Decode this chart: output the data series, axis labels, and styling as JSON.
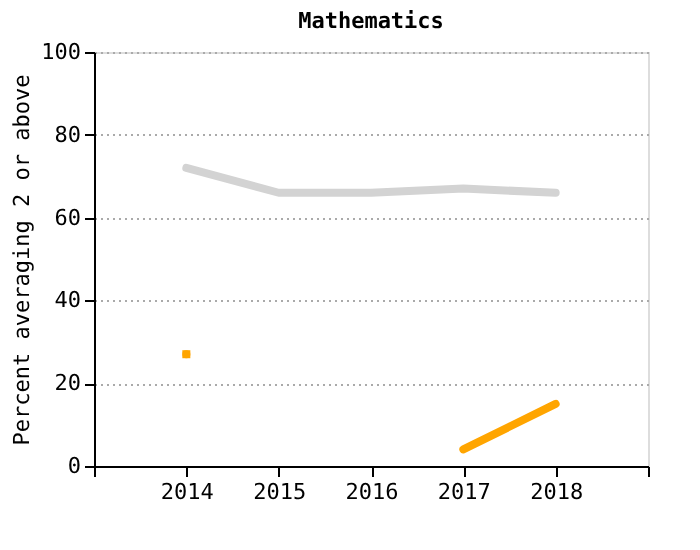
{
  "chart_data": {
    "type": "line",
    "title": "Mathematics",
    "ylabel": "Percent averaging 2 or above",
    "x": [
      2014,
      2015,
      2016,
      2017,
      2018
    ],
    "series": [
      {
        "color": "#d3d3d3",
        "values": [
          72,
          66,
          66,
          67,
          66
        ]
      },
      {
        "color": "#ffa500",
        "values": [
          27,
          null,
          null,
          4,
          15
        ]
      }
    ],
    "xlim": [
      2013,
      2019
    ],
    "xticks": [
      {
        "value": 2013,
        "label": null
      },
      2014,
      2015,
      2016,
      2017,
      2018,
      {
        "value": 2019,
        "label": null
      }
    ],
    "ylim": [
      0,
      100
    ],
    "yticks": [
      0,
      20,
      40,
      60,
      80,
      100
    ],
    "grid": "y"
  }
}
